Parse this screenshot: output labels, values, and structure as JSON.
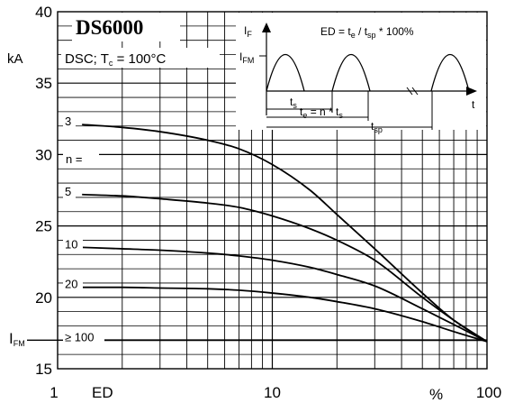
{
  "chart_data": {
    "type": "line",
    "title": "DS6000",
    "condition": {
      "text": "DSC; T",
      "sub": "c",
      "rest": " = 100°C"
    },
    "xlabel": "ED",
    "x_unit": "%",
    "ylabel": "kA",
    "xscale": "log",
    "xlim": [
      1,
      100
    ],
    "ylim": [
      15,
      40
    ],
    "x_ticks": [
      1,
      10,
      100
    ],
    "x_tick_labels": [
      "1",
      "10",
      "100"
    ],
    "y_ticks": [
      15,
      20,
      25,
      30,
      35,
      40
    ],
    "y_tick_labels": [
      "15",
      "20",
      "25",
      "30",
      "35",
      "40"
    ],
    "grid": true,
    "ifm_label": {
      "main": "I",
      "sub": "FM"
    },
    "ifm_value": 17,
    "n_label": "n =",
    "series": [
      {
        "name": "3",
        "x": [
          1.3,
          2,
          3,
          5,
          7,
          10,
          15,
          20,
          30,
          50,
          70,
          100
        ],
        "y": [
          32.1,
          31.9,
          31.6,
          31.0,
          30.4,
          29.3,
          27.5,
          25.8,
          23.4,
          20.3,
          18.4,
          16.9
        ]
      },
      {
        "name": "5",
        "x": [
          1.3,
          2,
          3,
          5,
          7,
          10,
          15,
          20,
          30,
          50,
          70,
          100
        ],
        "y": [
          27.2,
          27.1,
          26.9,
          26.6,
          26.3,
          25.7,
          24.8,
          24.0,
          22.6,
          20.0,
          18.4,
          16.9
        ]
      },
      {
        "name": "10",
        "x": [
          1.3,
          2,
          3,
          5,
          7,
          10,
          15,
          20,
          30,
          50,
          70,
          100
        ],
        "y": [
          23.5,
          23.4,
          23.3,
          23.1,
          22.9,
          22.6,
          22.1,
          21.6,
          20.8,
          19.2,
          18.1,
          16.9
        ]
      },
      {
        "name": "20",
        "x": [
          1.3,
          2,
          3,
          5,
          7,
          10,
          15,
          20,
          30,
          50,
          70,
          100
        ],
        "y": [
          20.7,
          20.7,
          20.65,
          20.6,
          20.5,
          20.3,
          20.0,
          19.7,
          19.2,
          18.3,
          17.6,
          16.9
        ]
      },
      {
        "name": "≥ 100",
        "x": [
          1.3,
          100
        ],
        "y": [
          17.0,
          17.0
        ]
      }
    ],
    "inset": {
      "formula": {
        "p1": "ED = t",
        "s1": "e",
        "p2": " / t",
        "s2": "sp",
        "p3": " * 100%"
      },
      "if_label": {
        "main": "I",
        "sub": "F"
      },
      "ifm_label": {
        "main": "I",
        "sub": "FM"
      },
      "t_label": "t",
      "ts_label": {
        "main": "t",
        "sub": "s"
      },
      "te_label": {
        "p1": "t",
        "s1": "e",
        "p2": " = n * t",
        "s2": "s"
      },
      "tsp_label": {
        "main": "t",
        "sub": "sp"
      }
    }
  }
}
